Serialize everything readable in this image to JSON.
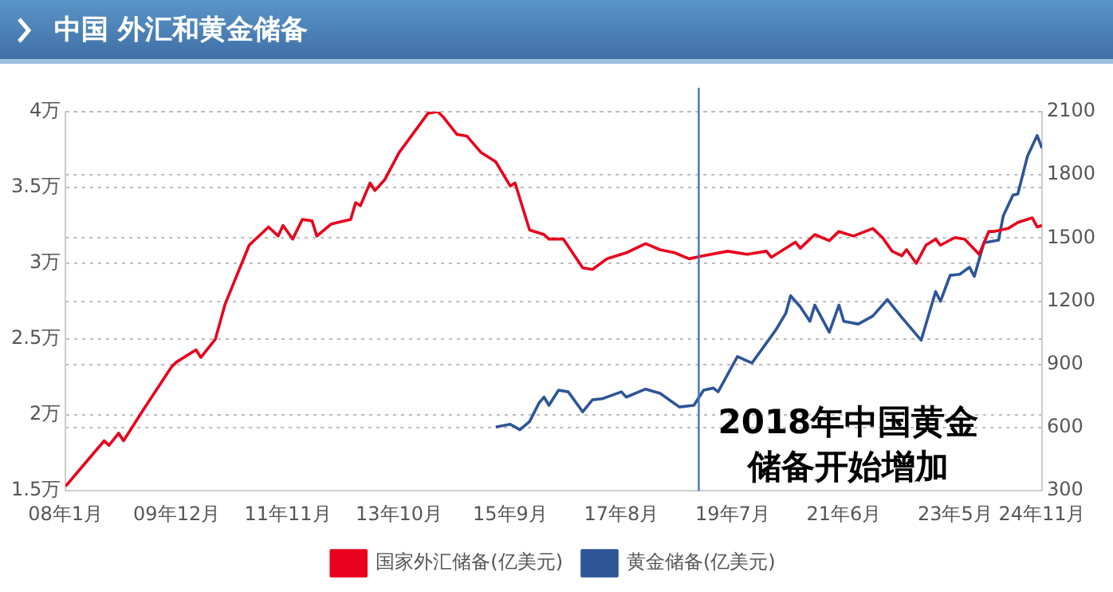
{
  "chart_data": {
    "type": "line",
    "title": "中国 外汇和黄金储备",
    "xlim": [
      "2008-01",
      "2024-11"
    ],
    "xticks": [
      {
        "value": "2008-01",
        "label": "08年1月"
      },
      {
        "value": "2009-12",
        "label": "09年12月"
      },
      {
        "value": "2011-11",
        "label": "11年11月"
      },
      {
        "value": "2013-10",
        "label": "13年10月"
      },
      {
        "value": "2015-09",
        "label": "15年9月"
      },
      {
        "value": "2017-08",
        "label": "17年8月"
      },
      {
        "value": "2019-07",
        "label": "19年7月"
      },
      {
        "value": "2021-06",
        "label": "21年6月"
      },
      {
        "value": "2023-05",
        "label": "23年5月"
      },
      {
        "value": "2024-11",
        "label": "24年11月"
      }
    ],
    "ylim": [
      1.5,
      4
    ],
    "yticks": [
      {
        "value": 1.5,
        "label": "1.5万"
      },
      {
        "value": 2,
        "label": "2万"
      },
      {
        "value": 2.5,
        "label": "2.5万"
      },
      {
        "value": 3,
        "label": "3万"
      },
      {
        "value": 3.5,
        "label": "3.5万"
      },
      {
        "value": 4,
        "label": "4万"
      }
    ],
    "y2lim": [
      300,
      2100
    ],
    "y2ticks": [
      300,
      600,
      900,
      1200,
      1500,
      1800,
      2100
    ],
    "grid": "y",
    "legend": "bottom",
    "marker": "none",
    "line_style": "solid",
    "ref_lines": [
      {
        "axis": "x",
        "value": "2018-12",
        "label": "2018年中国黄金储备开始增加",
        "color": "#4472c4"
      }
    ],
    "series": [
      {
        "name": "国家外汇储备(亿美元)",
        "color": "#e8001c",
        "x": [
          "2008-01",
          "2008-05",
          "2008-09",
          "2008-10",
          "2008-12",
          "2009-01",
          "2009-05",
          "2009-11",
          "2009-12",
          "2010-04",
          "2010-05",
          "2010-08",
          "2010-10",
          "2011-03",
          "2011-07",
          "2011-09",
          "2011-10",
          "2011-12",
          "2012-02",
          "2012-04",
          "2012-05",
          "2012-08",
          "2012-12",
          "2013-01",
          "2013-02",
          "2013-04",
          "2013-05",
          "2013-07",
          "2013-10",
          "2014-01",
          "2014-04",
          "2014-06",
          "2014-07",
          "2014-10",
          "2014-12",
          "2015-03",
          "2015-06",
          "2015-09",
          "2015-10",
          "2016-01",
          "2016-04",
          "2016-05",
          "2016-08",
          "2016-12",
          "2017-02",
          "2017-05",
          "2017-09",
          "2018-01",
          "2018-04",
          "2018-07",
          "2018-10",
          "2019-01",
          "2019-06",
          "2019-10",
          "2020-02",
          "2020-03",
          "2020-08",
          "2020-09",
          "2020-12",
          "2021-03",
          "2021-05",
          "2021-08",
          "2021-12",
          "2022-02",
          "2022-04",
          "2022-06",
          "2022-07",
          "2022-09",
          "2022-11",
          "2023-01",
          "2023-02",
          "2023-05",
          "2023-07",
          "2023-10",
          "2023-12",
          "2024-01",
          "2024-04",
          "2024-06",
          "2024-09",
          "2024-10",
          "2024-11"
        ],
        "values": [
          1.53,
          1.68,
          1.83,
          1.8,
          1.88,
          1.83,
          2.03,
          2.32,
          2.35,
          2.43,
          2.38,
          2.5,
          2.73,
          3.12,
          3.24,
          3.18,
          3.25,
          3.16,
          3.29,
          3.28,
          3.18,
          3.26,
          3.29,
          3.4,
          3.38,
          3.53,
          3.48,
          3.55,
          3.73,
          3.86,
          3.99,
          4.0,
          3.97,
          3.85,
          3.84,
          3.73,
          3.67,
          3.51,
          3.53,
          3.22,
          3.19,
          3.16,
          3.16,
          2.97,
          2.96,
          3.03,
          3.07,
          3.13,
          3.09,
          3.07,
          3.03,
          3.05,
          3.08,
          3.06,
          3.08,
          3.04,
          3.14,
          3.1,
          3.19,
          3.15,
          3.21,
          3.18,
          3.23,
          3.17,
          3.08,
          3.05,
          3.09,
          3.0,
          3.12,
          3.16,
          3.12,
          3.17,
          3.16,
          3.06,
          3.21,
          3.21,
          3.23,
          3.27,
          3.3,
          3.24,
          3.25
        ]
      },
      {
        "name": "黄金储备(亿美元)",
        "color": "#2e5596",
        "axis": "y2",
        "x": [
          "2015-06",
          "2015-09",
          "2015-11",
          "2016-01",
          "2016-03",
          "2016-04",
          "2016-05",
          "2016-07",
          "2016-09",
          "2016-12",
          "2017-02",
          "2017-04",
          "2017-08",
          "2017-09",
          "2018-01",
          "2018-04",
          "2018-08",
          "2018-11",
          "2019-01",
          "2019-03",
          "2019-04",
          "2019-08",
          "2019-10",
          "2019-11",
          "2020-02",
          "2020-04",
          "2020-06",
          "2020-07",
          "2020-09",
          "2020-11",
          "2020-12",
          "2021-03",
          "2021-05",
          "2021-06",
          "2021-09",
          "2021-12",
          "2022-03",
          "2022-06",
          "2022-10",
          "2023-01",
          "2023-02",
          "2023-04",
          "2023-06",
          "2023-08",
          "2023-09",
          "2023-11",
          "2024-02",
          "2024-03",
          "2024-05",
          "2024-06",
          "2024-08",
          "2024-10",
          "2024-11"
        ],
        "values": [
          603,
          616,
          590,
          629,
          719,
          745,
          706,
          778,
          770,
          675,
          732,
          737,
          770,
          745,
          783,
          763,
          698,
          706,
          778,
          788,
          770,
          938,
          917,
          907,
          1002,
          1066,
          1143,
          1226,
          1174,
          1105,
          1182,
          1053,
          1182,
          1105,
          1092,
          1130,
          1208,
          1123,
          1015,
          1246,
          1200,
          1323,
          1328,
          1362,
          1318,
          1478,
          1490,
          1606,
          1704,
          1709,
          1889,
          1987,
          1927
        ]
      }
    ]
  }
}
